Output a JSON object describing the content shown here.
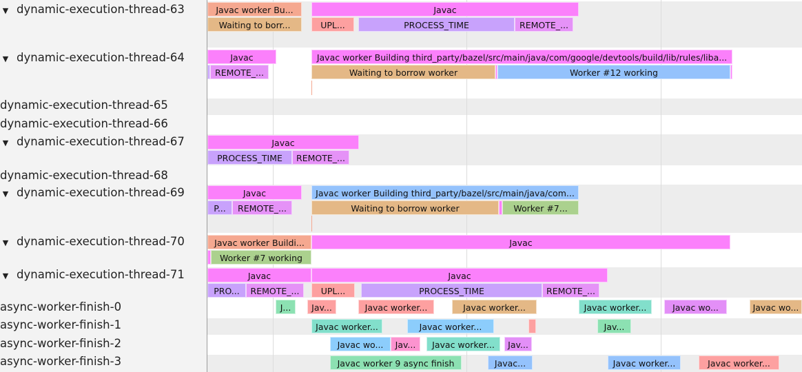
{
  "colors": {
    "javac": "#fb80fb",
    "salmon": "#f5a890",
    "tan": "#e4b886",
    "process": "#c8a2fc",
    "remote": "#e592f7",
    "upload": "#fda0a0",
    "worker_blue": "#94c2fc",
    "worker_green": "#abd18e",
    "teal": "#82dfcb",
    "light_blue": "#8ccdfc",
    "green": "#8ce1b2",
    "pink": "#fc93cf",
    "purple": "#e38ff7"
  },
  "tracks": [
    {
      "label": "dynamic-execution-thread-63",
      "expanded": true,
      "slices": [
        {
          "label": "Javac worker Bu...",
          "color": "salmon"
        },
        {
          "label": "Javac",
          "color": "javac"
        },
        {
          "label": "Waiting to borr...",
          "color": "tan"
        },
        {
          "label": "UPL...",
          "color": "upload"
        },
        {
          "label": "PROCESS_TIME",
          "color": "process"
        },
        {
          "label": "REMOTE_...",
          "color": "remote"
        }
      ]
    },
    {
      "label": "dynamic-execution-thread-64",
      "expanded": true,
      "slices": [
        {
          "label": "Javac",
          "color": "javac"
        },
        {
          "label": "Javac worker Building third_party/bazel/src/main/java/com/google/devtools/build/lib/rules/liba...",
          "color": "javac"
        },
        {
          "label": "",
          "color": "process"
        },
        {
          "label": "REMOTE_...",
          "color": "remote"
        },
        {
          "label": "Waiting to borrow worker",
          "color": "tan"
        },
        {
          "label": "",
          "color": "javac"
        },
        {
          "label": "Worker #12 working",
          "color": "worker_blue"
        },
        {
          "label": "",
          "color": "javac"
        }
      ]
    },
    {
      "label": "dynamic-execution-thread-65",
      "expanded": false,
      "slices": []
    },
    {
      "label": "dynamic-execution-thread-66",
      "expanded": false,
      "slices": []
    },
    {
      "label": "dynamic-execution-thread-67",
      "expanded": true,
      "slices": [
        {
          "label": "Javac",
          "color": "javac"
        },
        {
          "label": "PROCESS_TIME",
          "color": "process"
        },
        {
          "label": "REMOTE_...",
          "color": "remote"
        }
      ]
    },
    {
      "label": "dynamic-execution-thread-68",
      "expanded": false,
      "slices": []
    },
    {
      "label": "dynamic-execution-thread-69",
      "expanded": true,
      "slices": [
        {
          "label": "Javac",
          "color": "javac"
        },
        {
          "label": "Javac worker Building third_party/bazel/src/main/java/com...",
          "color": "worker_blue"
        },
        {
          "label": "P...",
          "color": "process"
        },
        {
          "label": "REMOTE_...",
          "color": "remote"
        },
        {
          "label": "Waiting to borrow worker",
          "color": "tan"
        },
        {
          "label": "",
          "color": "javac"
        },
        {
          "label": "Worker #7...",
          "color": "worker_green"
        }
      ]
    },
    {
      "label": "dynamic-execution-thread-70",
      "expanded": true,
      "slices": [
        {
          "label": "Javac worker Buildi...",
          "color": "salmon"
        },
        {
          "label": "Javac",
          "color": "javac"
        },
        {
          "label": "",
          "color": "javac"
        },
        {
          "label": "Worker #7 working",
          "color": "worker_green"
        }
      ]
    },
    {
      "label": "dynamic-execution-thread-71",
      "expanded": true,
      "slices": [
        {
          "label": "Javac",
          "color": "javac"
        },
        {
          "label": "Javac",
          "color": "javac"
        },
        {
          "label": "PRO...",
          "color": "process"
        },
        {
          "label": "REMOTE_...",
          "color": "remote"
        },
        {
          "label": "UPL...",
          "color": "upload"
        },
        {
          "label": "PROCESS_TIME",
          "color": "process"
        },
        {
          "label": "REMOTE_...",
          "color": "remote"
        }
      ]
    },
    {
      "label": "async-worker-finish-0",
      "expanded": false,
      "slices": [
        {
          "label": "J...",
          "color": "green"
        },
        {
          "label": "Jav...",
          "color": "upload"
        },
        {
          "label": "Javac worker...",
          "color": "upload"
        },
        {
          "label": "Javac worker...",
          "color": "tan"
        },
        {
          "label": "Javac worker...",
          "color": "teal"
        },
        {
          "label": "Javac wo...",
          "color": "purple"
        },
        {
          "label": "Javac wo...",
          "color": "tan"
        }
      ]
    },
    {
      "label": "async-worker-finish-1",
      "expanded": false,
      "slices": [
        {
          "label": "Javac worker...",
          "color": "teal"
        },
        {
          "label": "Javac worker...",
          "color": "light_blue"
        },
        {
          "label": "",
          "color": "upload"
        },
        {
          "label": "Jav...",
          "color": "green"
        }
      ]
    },
    {
      "label": "async-worker-finish-2",
      "expanded": false,
      "slices": [
        {
          "label": "Javac wo...",
          "color": "light_blue"
        },
        {
          "label": "Jav...",
          "color": "pink"
        },
        {
          "label": "Javac worker...",
          "color": "teal"
        },
        {
          "label": "Jav...",
          "color": "purple"
        }
      ]
    },
    {
      "label": "async-worker-finish-3",
      "expanded": false,
      "slices": [
        {
          "label": "Javac worker 9 async finish",
          "color": "green"
        },
        {
          "label": "Javac...",
          "color": "worker_blue"
        },
        {
          "label": "Javac worker...",
          "color": "worker_blue"
        },
        {
          "label": "Javac worker...",
          "color": "upload"
        }
      ]
    }
  ]
}
